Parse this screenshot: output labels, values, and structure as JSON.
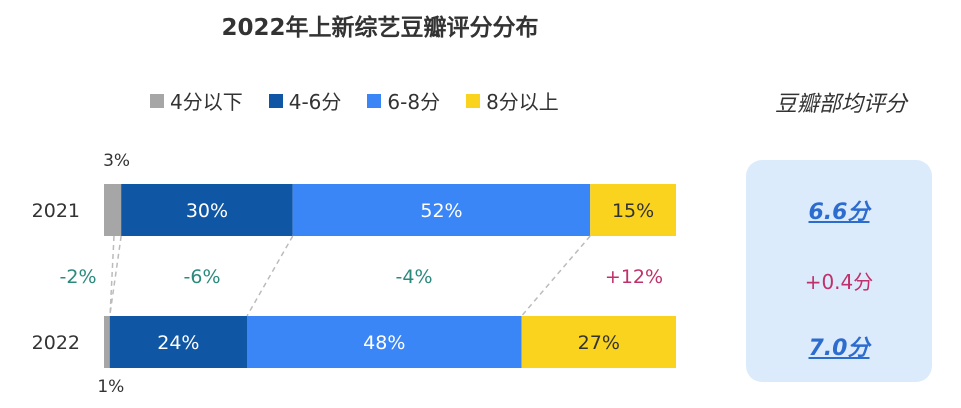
{
  "chart_data": {
    "type": "bar",
    "orientation": "horizontal",
    "stacked": true,
    "percent_stacked": true,
    "title": "2022年上新综艺豆瓣评分分布",
    "categories": [
      "2021",
      "2022"
    ],
    "series": [
      {
        "name": "4分以下",
        "color": "#a6a6a6",
        "values": [
          3,
          1
        ],
        "labels": [
          "3%",
          "1%"
        ]
      },
      {
        "name": "4-6分",
        "color": "#0f56a5",
        "values": [
          30,
          24
        ],
        "labels": [
          "30%",
          "24%"
        ]
      },
      {
        "name": "6-8分",
        "color": "#3a86f6",
        "values": [
          52,
          48
        ],
        "labels": [
          "52%",
          "48%"
        ]
      },
      {
        "name": "8分以上",
        "color": "#fad31f",
        "values": [
          15,
          27
        ],
        "labels": [
          "15%",
          "27%"
        ]
      }
    ],
    "change_labels": [
      "-2%",
      "-6%",
      "-4%",
      "+12%"
    ],
    "change_colors": [
      "#2a8a7c",
      "#2a8a7c",
      "#2a8a7c",
      "#c0306a"
    ],
    "legend": "top",
    "grid": false
  },
  "panel": {
    "title": "豆瓣部均评分",
    "avg_2021": "6.6分",
    "avg_change": "+0.4分",
    "avg_2022": "7.0分"
  }
}
